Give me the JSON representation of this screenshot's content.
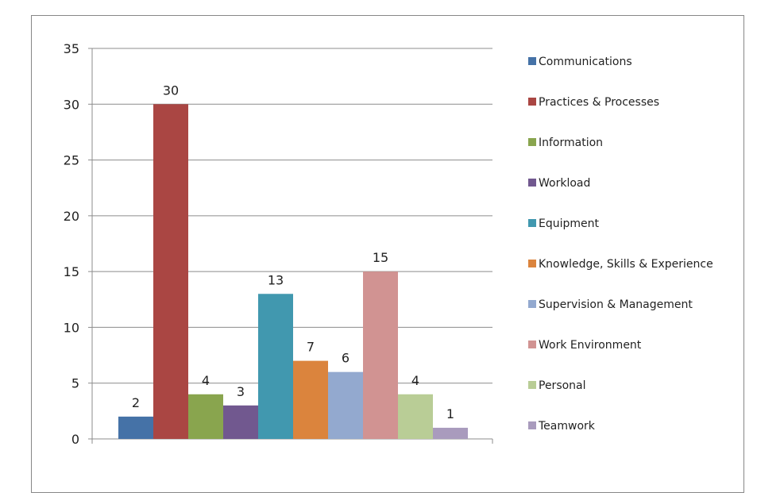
{
  "chart_data": {
    "type": "bar",
    "title": "",
    "xlabel": "",
    "ylabel": "",
    "ylim": [
      0,
      35
    ],
    "yticks": [
      0,
      5,
      10,
      15,
      20,
      25,
      30,
      35
    ],
    "grid": true,
    "legend_position": "right",
    "show_data_labels": true,
    "series": [
      {
        "name": "Communications",
        "value": 2,
        "color": "#4572A7"
      },
      {
        "name": "Practices & Processes",
        "value": 30,
        "color": "#AA4643"
      },
      {
        "name": "Information",
        "value": 4,
        "color": "#89A54E"
      },
      {
        "name": "Workload",
        "value": 3,
        "color": "#71588F"
      },
      {
        "name": "Equipment",
        "value": 13,
        "color": "#4198AF"
      },
      {
        "name": "Knowledge, Skills & Experience",
        "value": 7,
        "color": "#DB843D"
      },
      {
        "name": "Supervision & Management",
        "value": 6,
        "color": "#93A9CF"
      },
      {
        "name": "Work Environment",
        "value": 15,
        "color": "#D19392"
      },
      {
        "name": "Personal",
        "value": 4,
        "color": "#B9CD96"
      },
      {
        "name": "Teamwork",
        "value": 1,
        "color": "#A99BBD"
      }
    ]
  }
}
